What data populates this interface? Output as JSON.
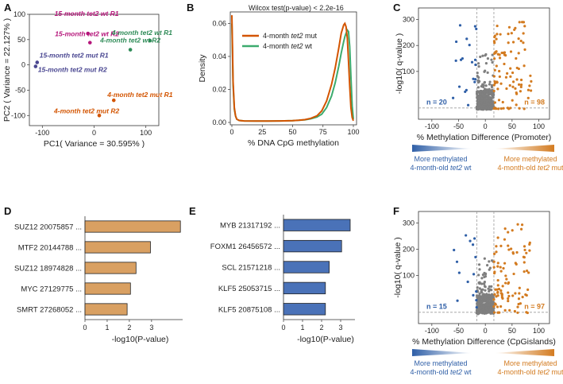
{
  "panels": [
    {
      "letter": "A",
      "type": "scatter",
      "xlabel": "PC1( Variance = 30.595% )",
      "ylabel": "PC2 ( Variance = 22.127% )",
      "xlim": [
        -125,
        125
      ],
      "ylim": [
        -120,
        100
      ],
      "xticks": [
        -100,
        0,
        100
      ],
      "yticks": [
        -100,
        -50,
        0,
        50,
        100
      ],
      "points": [
        {
          "label": "15-month tet2 wt R1",
          "x": -12,
          "y": 62,
          "color": "#b5157a"
        },
        {
          "label": "15-month tet2 wt R2",
          "x": -8,
          "y": 44,
          "color": "#b5157a"
        },
        {
          "label": "15-month tet2 mut R1",
          "x": -110,
          "y": 5,
          "color": "#4a4791"
        },
        {
          "label": "15-month tet2 mut R2",
          "x": -113,
          "y": -3,
          "color": "#4a4791"
        },
        {
          "label": "4-month tet2 wt R1",
          "x": 108,
          "y": 48,
          "color": "#2e8b57"
        },
        {
          "label": "4-month tet2 wt R2",
          "x": 70,
          "y": 30,
          "color": "#2e8b57"
        },
        {
          "label": "4-month tet2 mut R1",
          "x": 38,
          "y": -70,
          "color": "#d35400"
        },
        {
          "label": "4-month tet2 mut R2",
          "x": 10,
          "y": -100,
          "color": "#d35400"
        }
      ]
    },
    {
      "letter": "B",
      "type": "line",
      "title": "Wilcox test(p-value) < 2.2e-16",
      "xlabel": "% DNA CpG methylation",
      "ylabel": "Density",
      "xlim": [
        0,
        100
      ],
      "ylim": [
        0,
        0.066
      ],
      "xticks": [
        0,
        25,
        50,
        75,
        100
      ],
      "yticks": [
        0.0,
        0.02,
        0.04,
        0.06
      ],
      "ytick_labels": [
        "0.00",
        "0.02",
        "0.04",
        "0.06"
      ],
      "series": [
        {
          "name": "4-month tet2 mut",
          "color": "#d35400",
          "x": [
            0,
            0.5,
            1,
            2,
            3,
            4,
            6,
            10,
            20,
            30,
            40,
            50,
            55,
            60,
            65,
            70,
            74,
            78,
            82,
            85,
            88,
            90,
            92,
            93,
            94,
            95,
            96,
            97,
            98,
            99,
            100
          ],
          "y": [
            0.065,
            0.045,
            0.025,
            0.009,
            0.004,
            0.002,
            0.0012,
            0.0009,
            0.0008,
            0.0008,
            0.0009,
            0.0011,
            0.0013,
            0.0017,
            0.0025,
            0.004,
            0.007,
            0.013,
            0.023,
            0.033,
            0.045,
            0.054,
            0.059,
            0.06,
            0.058,
            0.051,
            0.037,
            0.022,
            0.009,
            0.003,
            0.001
          ]
        },
        {
          "name": "4-month tet2 wt",
          "color": "#3cab6e",
          "x": [
            0,
            0.5,
            1,
            2,
            3,
            4,
            6,
            10,
            20,
            30,
            40,
            50,
            55,
            60,
            65,
            70,
            74,
            78,
            82,
            85,
            88,
            90,
            92,
            93,
            94,
            95,
            96,
            97,
            98,
            99,
            100
          ],
          "y": [
            0.06,
            0.041,
            0.023,
            0.008,
            0.004,
            0.002,
            0.0012,
            0.0009,
            0.0008,
            0.0008,
            0.0009,
            0.0011,
            0.0013,
            0.0016,
            0.0022,
            0.0033,
            0.005,
            0.009,
            0.016,
            0.024,
            0.034,
            0.042,
            0.049,
            0.052,
            0.054,
            0.056,
            0.055,
            0.046,
            0.028,
            0.01,
            0.002
          ]
        }
      ]
    },
    {
      "letter": "C",
      "type": "scatter",
      "xlabel": "% Methylation Difference (Promoter)",
      "ylabel": "-log10( q-value )",
      "xlim": [
        -125,
        120
      ],
      "yticks": [
        100,
        200,
        300
      ],
      "xticks": [
        -100,
        -50,
        0,
        50,
        100
      ],
      "vlines": [
        -16,
        16
      ],
      "n_left": "n = 20",
      "n_right": "n = 98",
      "left_caption": [
        "More methylated",
        "4-month-old tet2 wt"
      ],
      "right_caption": [
        "More methylated",
        "4-month-old tet2 mut"
      ]
    },
    {
      "letter": "D",
      "type": "bar",
      "xlabel": "-log10(P-value)",
      "categories": [
        "SUZ12 20075857 ...",
        "MTF2 20144788 ...",
        "SUZ12 18974828 ...",
        "MYC 27129775 ...",
        "SMRT 27268052 ..."
      ],
      "values": [
        4.3,
        2.95,
        2.3,
        2.05,
        1.9
      ],
      "xticks": [
        0,
        1,
        2,
        3
      ],
      "xlim": [
        0,
        4.4
      ],
      "color": "#d9a062"
    },
    {
      "letter": "E",
      "type": "bar",
      "xlabel": "-log10(P-value)",
      "categories": [
        "MYB 21317192 ...",
        "FOXM1 26456572 ...",
        "SCL 21571218 ...",
        "KLF5 25053715 ...",
        "KLF5 20875108 ..."
      ],
      "values": [
        3.5,
        3.05,
        2.4,
        2.2,
        2.2
      ],
      "xticks": [
        0,
        1,
        2,
        3
      ],
      "xlim": [
        0,
        3.75
      ],
      "color": "#4a72b8"
    },
    {
      "letter": "F",
      "type": "scatter",
      "xlabel": "% Methylation Difference (CpGislands)",
      "ylabel": "-log10( q-value )",
      "xlim": [
        -125,
        120
      ],
      "yticks": [
        100,
        200,
        300
      ],
      "xticks": [
        -100,
        -50,
        0,
        50,
        100
      ],
      "vlines": [
        -16,
        16
      ],
      "n_left": "n = 15",
      "n_right": "n = 97",
      "left_caption": [
        "More methylated",
        "4-month-old tet2 wt"
      ],
      "right_caption": [
        "More methylated",
        "4-month-old tet2 mut"
      ]
    }
  ],
  "colors": {
    "down": "#2f5fa7",
    "up": "#d37b20",
    "ns": "#7f7f7f",
    "dash": "#9a9a9a"
  }
}
